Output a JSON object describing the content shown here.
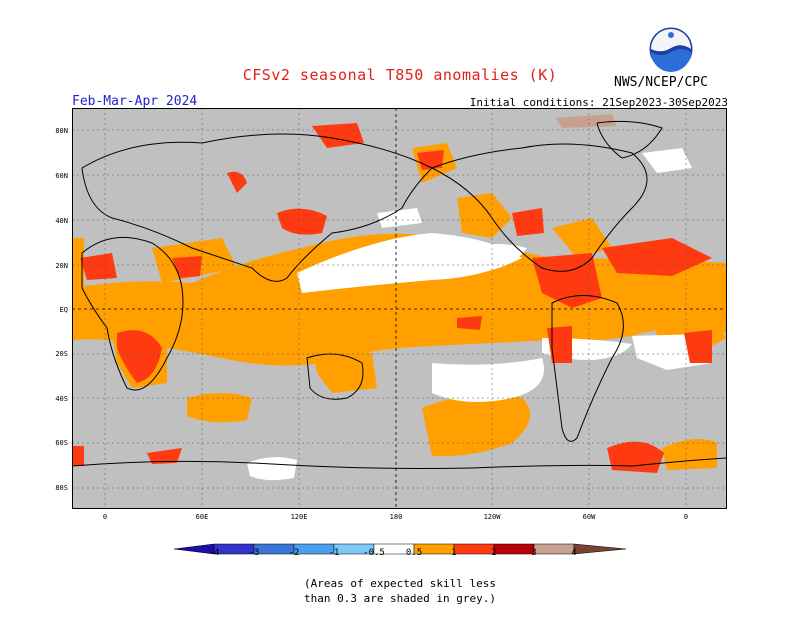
{
  "header": {
    "title": "CFSv2 seasonal T850 anomalies (K)",
    "period": "Feb-Mar-Apr 2024",
    "initial_conditions": "Initial conditions: 21Sep2023-30Sep2023",
    "agency": "NWS/NCEP/CPC",
    "logo_text": "NOAA"
  },
  "axes": {
    "lat_labels": [
      "80N",
      "60N",
      "40N",
      "20N",
      "EQ",
      "20S",
      "40S",
      "60S",
      "80S"
    ],
    "lon_labels": [
      "0",
      "60E",
      "120E",
      "180",
      "120W",
      "60W",
      "0"
    ]
  },
  "colorbar": {
    "labels": [
      "-4",
      "-3",
      "-2",
      "-1",
      "-0.5",
      "0.5",
      "1",
      "2",
      "3",
      "4"
    ],
    "colors": [
      "#1a0fa8",
      "#3333cc",
      "#3a76d8",
      "#4aa0ee",
      "#7ec8f8",
      "#ffffff",
      "#ffa000",
      "#ff3a10",
      "#b8000a",
      "#c8a090",
      "#7a4030"
    ]
  },
  "map_colors": {
    "ocean_grey": "#c0c0c0",
    "white": "#ffffff",
    "orange": "#ffa000",
    "red": "#ff3a10"
  },
  "notes": {
    "line1": "(Areas of expected skill less",
    "line2": "than 0.3 are shaded in grey.)"
  }
}
